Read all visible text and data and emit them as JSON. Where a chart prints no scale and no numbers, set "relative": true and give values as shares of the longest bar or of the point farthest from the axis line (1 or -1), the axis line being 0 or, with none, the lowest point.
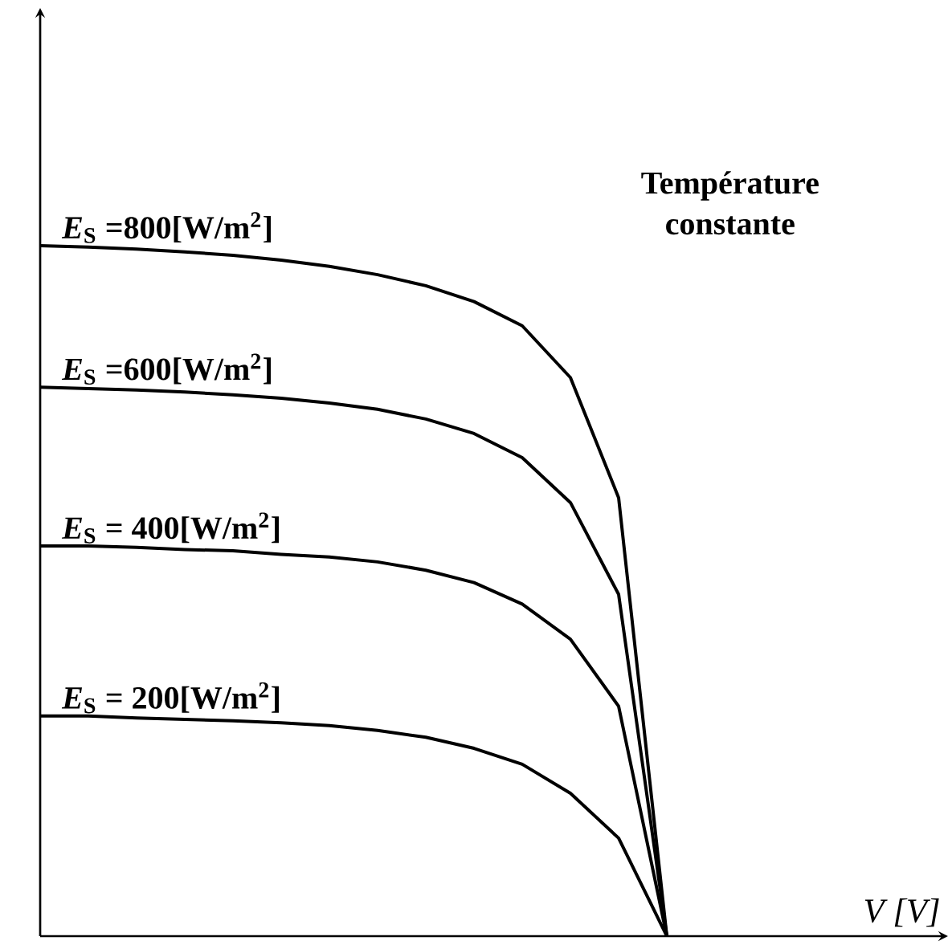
{
  "chart_data": {
    "type": "line",
    "relative": true,
    "annotations": [
      "Température constante",
      "V [V]"
    ],
    "categories": [
      null,
      null,
      null,
      null,
      null,
      null,
      null,
      null,
      null,
      null,
      null,
      null,
      null,
      null
    ],
    "marker": "none",
    "line_style": "solid",
    "series": [
      {
        "name": "*E*$_{S}$ =800[W/m$^{2}$]",
        "color": "#000000",
        "values": [
          1,
          0.998,
          0.995,
          0.991,
          0.986,
          0.979,
          0.97,
          0.958,
          0.942,
          0.919,
          0.884,
          0.809,
          0.635,
          0
        ]
      },
      {
        "name": "*E*$_{S}$ =600[W/m$^{2}$]",
        "color": "#000000",
        "values": [
          0.795,
          0.793,
          0.791,
          0.788,
          0.784,
          0.779,
          0.772,
          0.763,
          0.749,
          0.728,
          0.693,
          0.628,
          0.495,
          0
        ]
      },
      {
        "name": "*E*$_{S}$ = 400[W/m$^{2}$]",
        "color": "#000000",
        "values": [
          0.565,
          0.565,
          0.563,
          0.56,
          0.558,
          0.553,
          0.549,
          0.542,
          0.53,
          0.512,
          0.481,
          0.43,
          0.333,
          0
        ]
      },
      {
        "name": "*E*$_{S}$ = 200[W/m$^{2}$]",
        "color": "#000000",
        "values": [
          0.319,
          0.319,
          0.316,
          0.314,
          0.312,
          0.309,
          0.305,
          0.298,
          0.288,
          0.272,
          0.249,
          0.207,
          0.142,
          0
        ]
      }
    ]
  }
}
